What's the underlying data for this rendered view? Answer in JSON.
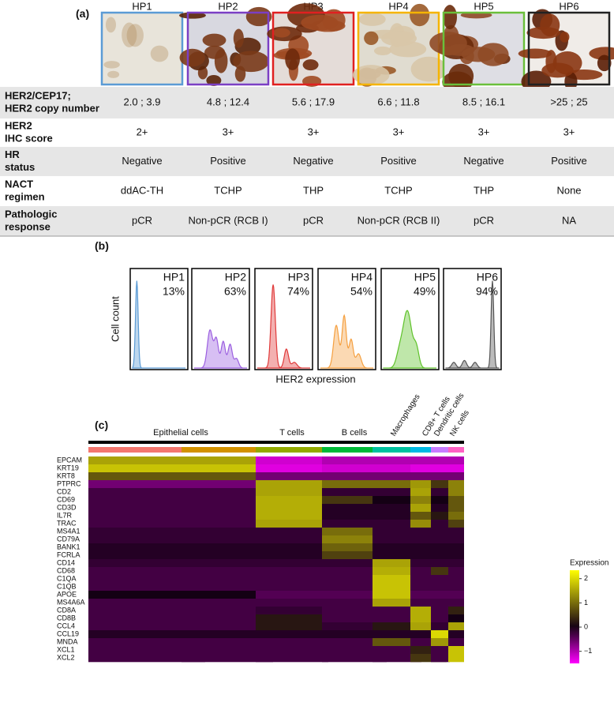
{
  "panel_labels": [
    "(a)",
    "(b)",
    "(c)"
  ],
  "patients": [
    {
      "id": "HP1",
      "color": "#5b9bd5"
    },
    {
      "id": "HP2",
      "color": "#7b3fc4"
    },
    {
      "id": "HP3",
      "color": "#e02020"
    },
    {
      "id": "HP4",
      "color": "#f5b400"
    },
    {
      "id": "HP5",
      "color": "#6abf3b"
    },
    {
      "id": "HP6",
      "color": "#222222"
    }
  ],
  "table": {
    "rows": [
      {
        "label": [
          "HER2/CEP17;",
          "HER2 copy number"
        ],
        "values": [
          "2.0 ; 3.9",
          "4.8 ; 12.4",
          "5.6 ; 17.9",
          "6.6 ; 11.8",
          "8.5 ; 16.1",
          ">25 ; 25"
        ]
      },
      {
        "label": [
          "HER2",
          "IHC score"
        ],
        "values": [
          "2+",
          "3+",
          "3+",
          "3+",
          "3+",
          "3+"
        ]
      },
      {
        "label": [
          "HR",
          "status"
        ],
        "values": [
          "Negative",
          "Positive",
          "Negative",
          "Positive",
          "Negative",
          "Positive"
        ]
      },
      {
        "label": [
          "NACT",
          "regimen"
        ],
        "values": [
          "ddAC-TH",
          "TCHP",
          "THP",
          "TCHP",
          "THP",
          "None"
        ]
      },
      {
        "label": [
          "Pathologic",
          "response"
        ],
        "values": [
          "pCR",
          "Non-pCR (RCB I)",
          "pCR",
          "Non-pCR (RCB II)",
          "pCR",
          "NA"
        ]
      }
    ]
  },
  "histograms": {
    "percents": [
      "13%",
      "63%",
      "74%",
      "54%",
      "49%",
      "94%"
    ],
    "y_label": "Cell count",
    "x_label": "HER2 expression"
  },
  "heatmap": {
    "clusters": [
      {
        "name": "Epithelial cells",
        "colors": [
          "#f4776f",
          "#d39200"
        ]
      },
      {
        "name": "T cells",
        "colors": [
          "#93aa00"
        ]
      },
      {
        "name": "B cells",
        "colors": [
          "#00ba38"
        ]
      },
      {
        "name": "Macrophages",
        "colors": [
          "#00c19f"
        ]
      },
      {
        "name": "CD8+ T cells",
        "colors": [
          "#00b9e3"
        ]
      },
      {
        "name": "Dendritic cells",
        "colors": [
          "#c77cff"
        ]
      },
      {
        "name": "NK cells",
        "colors": [
          "#ff61c3"
        ]
      }
    ],
    "genes": [
      "EPCAM",
      "KRT19",
      "KRT8",
      "PTPRC",
      "CD2",
      "CD69",
      "CD3D",
      "IL7R",
      "TRAC",
      "MS4A1",
      "CD79A",
      "BANK1",
      "FCRLA",
      "CD14",
      "CD68",
      "C1QA",
      "C1QB",
      "APOE",
      "MS4A6A",
      "CD8A",
      "CD8B",
      "CCL4",
      "CCL19",
      "MNDA",
      "XCL1",
      "XCL2"
    ],
    "values": [
      [
        1.5,
        1.5,
        -1.2,
        -1,
        -1,
        -1,
        -1,
        -1
      ],
      [
        1.8,
        1.8,
        -1.3,
        -1.2,
        -1.2,
        -1.3,
        -1.3,
        -1.3
      ],
      [
        0.8,
        0.8,
        -0.6,
        -0.6,
        -0.6,
        -0.6,
        -0.6,
        -0.6
      ],
      [
        -0.6,
        -0.6,
        1.5,
        1.0,
        1.0,
        1.4,
        0.5,
        1.2
      ],
      [
        -0.3,
        -0.3,
        1.5,
        -0.2,
        -0.2,
        1.5,
        -0.2,
        1.2
      ],
      [
        -0.3,
        -0.3,
        1.6,
        0.5,
        0,
        1.2,
        0,
        0.8
      ],
      [
        -0.3,
        -0.3,
        1.6,
        -0.1,
        -0.1,
        1.5,
        -0.1,
        0.8
      ],
      [
        -0.3,
        -0.3,
        1.6,
        -0.1,
        -0.1,
        0.8,
        0.2,
        1.0
      ],
      [
        -0.3,
        -0.3,
        1.5,
        -0.2,
        -0.2,
        1.3,
        -0.2,
        0.6
      ],
      [
        -0.2,
        -0.2,
        -0.2,
        1.0,
        -0.2,
        -0.2,
        -0.2,
        -0.2
      ],
      [
        -0.2,
        -0.2,
        -0.2,
        1.2,
        -0.2,
        -0.2,
        -0.2,
        -0.2
      ],
      [
        -0.1,
        -0.1,
        -0.1,
        0.9,
        -0.1,
        -0.1,
        -0.1,
        -0.1
      ],
      [
        -0.1,
        -0.1,
        -0.1,
        0.6,
        -0.1,
        -0.1,
        -0.1,
        -0.1
      ],
      [
        -0.2,
        -0.2,
        -0.2,
        -0.2,
        1.5,
        -0.2,
        -0.2,
        -0.2
      ],
      [
        -0.3,
        -0.3,
        -0.3,
        -0.3,
        1.6,
        -0.3,
        0.5,
        -0.3
      ],
      [
        -0.3,
        -0.3,
        -0.3,
        -0.3,
        1.8,
        -0.3,
        -0.3,
        -0.3
      ],
      [
        -0.3,
        -0.3,
        -0.3,
        -0.3,
        1.8,
        -0.3,
        -0.3,
        -0.3
      ],
      [
        0,
        0,
        -0.4,
        -0.4,
        1.8,
        -0.4,
        -0.4,
        -0.4
      ],
      [
        -0.3,
        -0.3,
        -0.3,
        -0.3,
        1.5,
        -0.3,
        -0.3,
        -0.3
      ],
      [
        -0.3,
        -0.3,
        -0.2,
        -0.3,
        -0.3,
        1.6,
        -0.3,
        0.3
      ],
      [
        -0.3,
        -0.3,
        0.2,
        -0.3,
        -0.3,
        1.6,
        -0.3,
        0
      ],
      [
        -0.3,
        -0.3,
        0.2,
        -0.2,
        0.2,
        1.5,
        -0.2,
        1.5
      ],
      [
        -0.1,
        -0.1,
        -0.1,
        -0.1,
        -0.1,
        -0.1,
        2.0,
        -0.1
      ],
      [
        -0.3,
        -0.3,
        -0.3,
        -0.3,
        0.8,
        -0.3,
        1.4,
        -0.3
      ],
      [
        -0.3,
        -0.3,
        -0.3,
        -0.3,
        -0.3,
        0.3,
        -0.3,
        1.8
      ],
      [
        -0.3,
        -0.3,
        -0.3,
        -0.3,
        -0.3,
        0.5,
        -0.3,
        1.8
      ]
    ],
    "legend": {
      "title": "Expression",
      "range": [
        -1.5,
        2.35
      ],
      "ticks": [
        2,
        1,
        0,
        {
          "value": -1,
          "label": "−1"
        }
      ]
    }
  }
}
